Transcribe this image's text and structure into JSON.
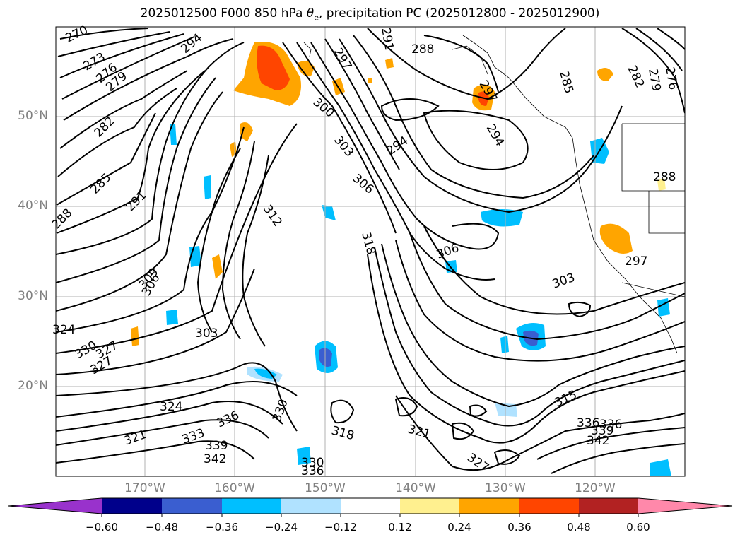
{
  "title": {
    "prefix": "2025012500 F000 850 hPa ",
    "theta": "θ",
    "sub": "e",
    "suffix": ", precipitation PC (2025012800 - 2025012900)"
  },
  "map": {
    "lat_ticks": [
      "50°N",
      "40°N",
      "30°N",
      "20°N"
    ],
    "lon_ticks": [
      "170°W",
      "160°W",
      "150°W",
      "140°W",
      "130°W",
      "120°W"
    ]
  },
  "contour_labels": [
    "270",
    "273",
    "276",
    "279",
    "282",
    "285",
    "288",
    "291",
    "294",
    "297",
    "300",
    "303",
    "306",
    "309",
    "312",
    "318",
    "321",
    "324",
    "327",
    "330",
    "333",
    "336",
    "339",
    "342",
    "315",
    "288",
    "294",
    "297",
    "291",
    "294",
    "285",
    "282",
    "279",
    "276",
    "288",
    "303",
    "297",
    "306",
    "306",
    "303",
    "324",
    "327",
    "330",
    "318",
    "327",
    "336",
    "336",
    "339",
    "342",
    "321",
    "330",
    "336"
  ],
  "colorbar": {
    "colors": [
      "#9932cc",
      "#00008b",
      "#3a5ed0",
      "#00bfff",
      "#b0e2ff",
      "#ffffff",
      "#fff08f",
      "#ffa500",
      "#ff4500",
      "#b22222",
      "#ff88aa"
    ],
    "labels": [
      "−0.60",
      "−0.48",
      "−0.36",
      "−0.24",
      "−0.12",
      "0.12",
      "0.24",
      "0.36",
      "0.48",
      "0.60"
    ]
  },
  "colors": {
    "contour": "#000000",
    "grid": "#b0b0b0",
    "tick_label": "#808080"
  }
}
